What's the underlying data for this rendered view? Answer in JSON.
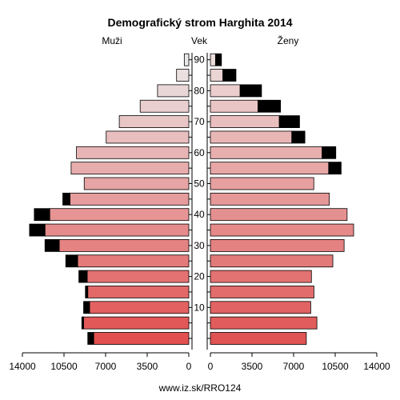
{
  "chart_data": {
    "type": "bar",
    "title": "Demografický strom Harghita 2014",
    "left_label": "Muži",
    "center_label": "Vek",
    "right_label": "Ženy",
    "footer": "www.iz.sk/RRO124",
    "age_groups": [
      "0-4",
      "5-9",
      "10-14",
      "15-19",
      "20-24",
      "25-29",
      "30-34",
      "35-39",
      "40-44",
      "45-49",
      "50-54",
      "55-59",
      "60-64",
      "65-69",
      "70-74",
      "75-79",
      "80-84",
      "85-89",
      "90+"
    ],
    "age_tick_labels": [
      "10",
      "20",
      "30",
      "40",
      "50",
      "60",
      "70",
      "80",
      "90"
    ],
    "age_tick_groups": [
      2,
      4,
      6,
      8,
      10,
      12,
      14,
      16,
      18
    ],
    "x_tick_labels_left": [
      "14000",
      "10500",
      "7000",
      "3500",
      "0"
    ],
    "x_tick_labels_right": [
      "0",
      "3500",
      "7000",
      "10500",
      "14000"
    ],
    "xlim": [
      0,
      14000
    ],
    "colors": {
      "surplus": "#000000",
      "male_young": "#e25050",
      "male_old": "#eae8e8",
      "female_young": "#e05454",
      "female_old": "#ecdcdc"
    },
    "series": [
      {
        "name": "Muži",
        "values": [
          8000,
          8850,
          8350,
          8500,
          8550,
          9350,
          10900,
          12100,
          11700,
          10000,
          8800,
          9900,
          9450,
          6950,
          5850,
          4090,
          2630,
          1030,
          380
        ],
        "surplus": [
          500,
          150,
          500,
          200,
          700,
          1000,
          1200,
          1300,
          1300,
          600,
          0,
          0,
          0,
          0,
          0,
          0,
          0,
          0,
          0
        ]
      },
      {
        "name": "Ženy",
        "values": [
          8070,
          8960,
          8440,
          8710,
          8500,
          10300,
          11250,
          12050,
          11500,
          10000,
          8700,
          9950,
          9400,
          6850,
          5800,
          4000,
          2500,
          1050,
          430
        ],
        "surplus": [
          0,
          0,
          0,
          0,
          0,
          0,
          0,
          0,
          0,
          0,
          0,
          1050,
          1150,
          1100,
          1700,
          1900,
          1800,
          1100,
          500
        ]
      }
    ]
  }
}
